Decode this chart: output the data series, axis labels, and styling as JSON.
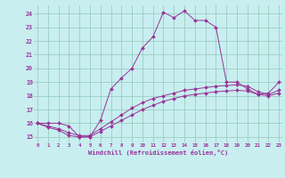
{
  "xlabel": "Windchill (Refroidissement éolien,°C)",
  "bg_color": "#c8eef0",
  "grid_color": "#90c8b8",
  "line_color": "#993399",
  "x_ticks": [
    0,
    1,
    2,
    3,
    4,
    5,
    6,
    7,
    8,
    9,
    10,
    11,
    12,
    13,
    14,
    15,
    16,
    17,
    18,
    19,
    20,
    21,
    22,
    23
  ],
  "y_ticks": [
    15,
    16,
    17,
    18,
    19,
    20,
    21,
    22,
    23,
    24
  ],
  "xlim": [
    -0.3,
    23.3
  ],
  "ylim": [
    14.6,
    24.6
  ],
  "series1_x": [
    0,
    1,
    2,
    3,
    4,
    5,
    6,
    7,
    8,
    9,
    10,
    11,
    12,
    13,
    14,
    15,
    16,
    17,
    18,
    19,
    20,
    21,
    22,
    23
  ],
  "series1_y": [
    16.0,
    16.0,
    16.0,
    15.8,
    15.0,
    15.0,
    16.2,
    18.5,
    19.3,
    20.0,
    21.5,
    22.3,
    24.1,
    23.7,
    24.2,
    23.5,
    23.5,
    23.0,
    19.0,
    19.0,
    18.5,
    18.1,
    18.2,
    19.0
  ],
  "series2_x": [
    0,
    1,
    2,
    3,
    4,
    5,
    6,
    7,
    8,
    9,
    10,
    11,
    12,
    13,
    14,
    15,
    16,
    17,
    18,
    19,
    20,
    21,
    22,
    23
  ],
  "series2_y": [
    16.0,
    15.7,
    15.5,
    15.1,
    15.0,
    15.0,
    15.4,
    15.8,
    16.2,
    16.6,
    17.0,
    17.3,
    17.6,
    17.8,
    18.0,
    18.1,
    18.2,
    18.3,
    18.35,
    18.4,
    18.35,
    18.1,
    18.0,
    18.2
  ],
  "series3_x": [
    0,
    1,
    2,
    3,
    4,
    5,
    6,
    7,
    8,
    9,
    10,
    11,
    12,
    13,
    14,
    15,
    16,
    17,
    18,
    19,
    20,
    21,
    22,
    23
  ],
  "series3_y": [
    16.0,
    15.8,
    15.6,
    15.3,
    15.1,
    15.1,
    15.6,
    16.1,
    16.6,
    17.1,
    17.5,
    17.8,
    18.0,
    18.2,
    18.4,
    18.5,
    18.6,
    18.7,
    18.75,
    18.8,
    18.7,
    18.3,
    18.1,
    18.4
  ]
}
